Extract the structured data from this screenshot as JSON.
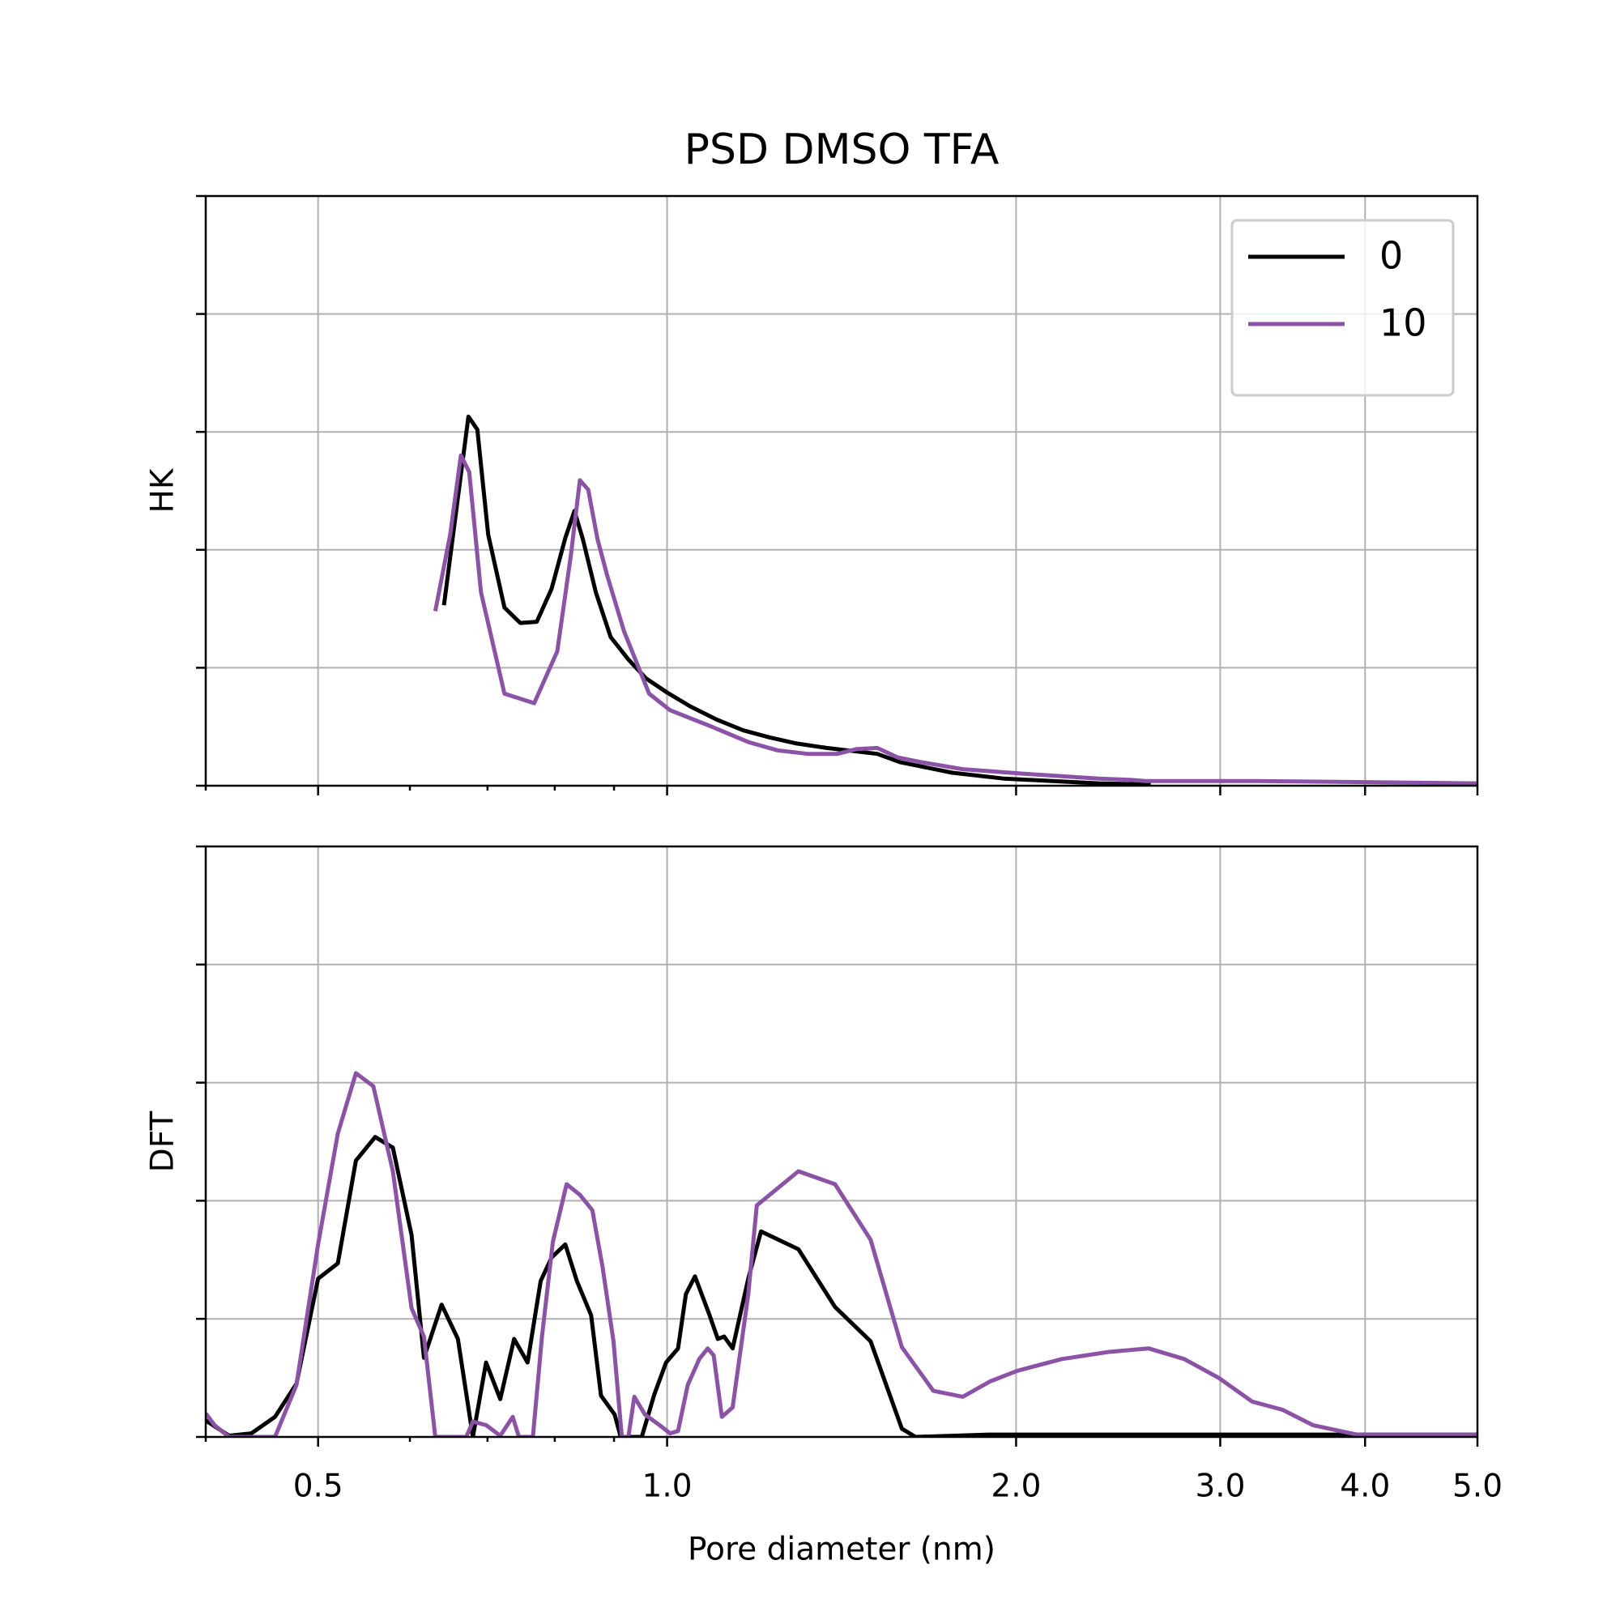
{
  "chart_data": [
    {
      "type": "line",
      "title": "PSD DMSO TFA",
      "ylabel": "HK",
      "xscale": "log",
      "grid": true,
      "legend": "upper right",
      "xlim": [
        0.4,
        5.0
      ],
      "xticks": [
        0.5,
        1,
        2,
        3,
        4,
        5
      ],
      "xminorticks": [
        0.4,
        0.6,
        0.7,
        0.8,
        0.9
      ],
      "ylim": [
        0,
        5
      ],
      "yticks": [
        0,
        1,
        2,
        3,
        4,
        5
      ],
      "series": [
        {
          "name": "0",
          "color": "#000000",
          "x": [
            0.642,
            0.674,
            0.686,
            0.701,
            0.724,
            0.747,
            0.772,
            0.795,
            0.817,
            0.832,
            0.846,
            0.868,
            0.894,
            0.926,
            0.959,
            1.0,
            1.048,
            1.104,
            1.163,
            1.225,
            1.29,
            1.373,
            1.518,
            1.588,
            1.762,
            1.954,
            2.356,
            2.613
          ],
          "values": [
            1.53,
            3.13,
            3.02,
            2.13,
            1.51,
            1.38,
            1.39,
            1.67,
            2.1,
            2.33,
            2.09,
            1.64,
            1.26,
            1.07,
            0.91,
            0.79,
            0.67,
            0.56,
            0.47,
            0.41,
            0.36,
            0.32,
            0.27,
            0.2,
            0.11,
            0.06,
            0.02,
            0.01
          ]
        },
        {
          "name": "10",
          "color": "#8c52a8",
          "x": [
            0.631,
            0.65,
            0.664,
            0.675,
            0.691,
            0.724,
            0.768,
            0.804,
            0.826,
            0.841,
            0.855,
            0.871,
            0.888,
            0.918,
            0.965,
            1.006,
            1.093,
            1.175,
            1.245,
            1.322,
            1.402,
            1.455,
            1.518,
            1.581,
            1.656,
            1.799,
            2.037,
            2.356,
            2.507,
            2.586,
            2.668,
            3.216,
            5.0
          ],
          "values": [
            1.48,
            2.13,
            2.8,
            2.66,
            1.64,
            0.78,
            0.7,
            1.14,
            1.95,
            2.59,
            2.51,
            2.09,
            1.78,
            1.31,
            0.78,
            0.64,
            0.5,
            0.37,
            0.3,
            0.27,
            0.27,
            0.31,
            0.32,
            0.24,
            0.2,
            0.14,
            0.1,
            0.06,
            0.05,
            0.04,
            0.04,
            0.04,
            0.02
          ]
        }
      ]
    },
    {
      "type": "line",
      "ylabel": "DFT",
      "xlabel": "Pore diameter (nm)",
      "xscale": "log",
      "grid": true,
      "xlim": [
        0.4,
        5.0
      ],
      "xticks": [
        0.5,
        {
          "value": 1,
          "label": "1.0"
        },
        {
          "value": 2,
          "label": "2.0"
        },
        {
          "value": 3,
          "label": "3.0"
        },
        {
          "value": 4,
          "label": "4.0"
        },
        {
          "value": 5,
          "label": "5.0"
        }
      ],
      "xminorticks": [
        0.4,
        0.6,
        0.7,
        0.8,
        0.9
      ],
      "ylim": [
        0,
        5
      ],
      "yticks": [
        0,
        1,
        2,
        3,
        4,
        5
      ],
      "series": [
        {
          "color": "#000000",
          "x": [
            0.4,
            0.419,
            0.438,
            0.459,
            0.479,
            0.5,
            0.52,
            0.539,
            0.56,
            0.58,
            0.602,
            0.617,
            0.639,
            0.66,
            0.68,
            0.698,
            0.718,
            0.738,
            0.758,
            0.778,
            0.795,
            0.817,
            0.836,
            0.86,
            0.877,
            0.901,
            0.912,
            0.951,
            0.975,
            0.998,
            1.022,
            1.038,
            1.057,
            1.088,
            1.106,
            1.12,
            1.139,
            1.175,
            1.205,
            1.298,
            1.396,
            1.498,
            1.594,
            1.638,
            1.895,
            5.0
          ],
          "values": [
            0.14,
            0.01,
            0.03,
            0.17,
            0.45,
            1.34,
            1.47,
            2.34,
            2.54,
            2.45,
            1.71,
            0.67,
            1.12,
            0.83,
            0,
            0.63,
            0.32,
            0.83,
            0.63,
            1.32,
            1.52,
            1.63,
            1.32,
            1.03,
            0.35,
            0.19,
            0,
            0,
            0.36,
            0.63,
            0.75,
            1.21,
            1.36,
            1.03,
            0.83,
            0.85,
            0.75,
            1.34,
            1.74,
            1.59,
            1.1,
            0.81,
            0.07,
            0,
            0.02,
            0.02
          ]
        },
        {
          "color": "#8c52a8",
          "x": [
            0.4,
            0.407,
            0.419,
            0.459,
            0.479,
            0.5,
            0.52,
            0.539,
            0.558,
            0.58,
            0.602,
            0.617,
            0.631,
            0.671,
            0.68,
            0.698,
            0.718,
            0.736,
            0.745,
            0.766,
            0.78,
            0.797,
            0.819,
            0.841,
            0.862,
            0.88,
            0.899,
            0.914,
            0.926,
            0.937,
            0.957,
            0.985,
            1.006,
            1.022,
            1.042,
            1.066,
            1.084,
            1.097,
            1.115,
            1.139,
            1.175,
            1.195,
            1.298,
            1.396,
            1.498,
            1.594,
            1.697,
            1.799,
            1.899,
            2.004,
            2.191,
            2.405,
            2.602,
            2.793,
            2.991,
            3.196,
            3.395,
            3.606,
            3.934,
            5.0
          ],
          "values": [
            0.2,
            0.1,
            0,
            0,
            0.44,
            1.63,
            2.57,
            3.08,
            2.97,
            2.25,
            1.09,
            0.85,
            0,
            0,
            0.13,
            0.1,
            0.01,
            0.17,
            0,
            0,
            0.85,
            1.65,
            2.14,
            2.05,
            1.92,
            1.43,
            0.81,
            0,
            0,
            0.34,
            0.19,
            0.1,
            0.03,
            0.05,
            0.44,
            0.66,
            0.75,
            0.69,
            0.17,
            0.25,
            1.21,
            1.96,
            2.25,
            2.14,
            1.67,
            0.76,
            0.39,
            0.34,
            0.47,
            0.56,
            0.66,
            0.72,
            0.75,
            0.66,
            0.5,
            0.3,
            0.23,
            0.1,
            0.02,
            0.02
          ]
        }
      ]
    }
  ]
}
